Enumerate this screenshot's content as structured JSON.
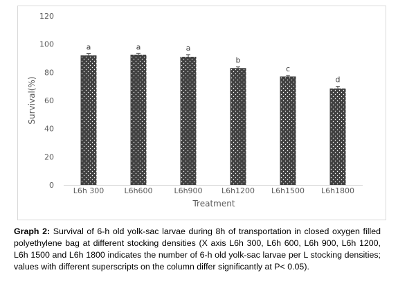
{
  "caption": {
    "label": "Graph 2:",
    "text": "Survival of 6-h old yolk-sac larvae during 8h of transportation in closed oxygen filled polyethylene bag at different stocking densities (X axis L6h 300, L6h 600, L6h 900, L6h 1200, L6h 1500 and L6h 1800 indicates the number of 6-h old yolk-sac larvae per L stocking densities; values with different superscripts on the column differ significantly at P< 0.05)."
  },
  "chart_data": {
    "type": "bar",
    "categories": [
      "L6h 300",
      "L6h600",
      "L6h900",
      "L6h1200",
      "L6h1500",
      "L6h1800"
    ],
    "values": [
      92,
      92.5,
      91,
      83,
      77,
      68.5
    ],
    "errors": [
      1.2,
      0.8,
      1.5,
      0.8,
      0.8,
      1.5
    ],
    "significance": [
      "a",
      "a",
      "a",
      "b",
      "c",
      "d"
    ],
    "xlabel": "Treatment",
    "ylabel": "Survival(%)",
    "ylim": [
      0,
      120
    ],
    "yticks": [
      0,
      20,
      40,
      60,
      80,
      100,
      120
    ],
    "grid": false,
    "colors": {
      "bar": "#404040",
      "dots": "#ffffff",
      "error": "#404040"
    }
  }
}
